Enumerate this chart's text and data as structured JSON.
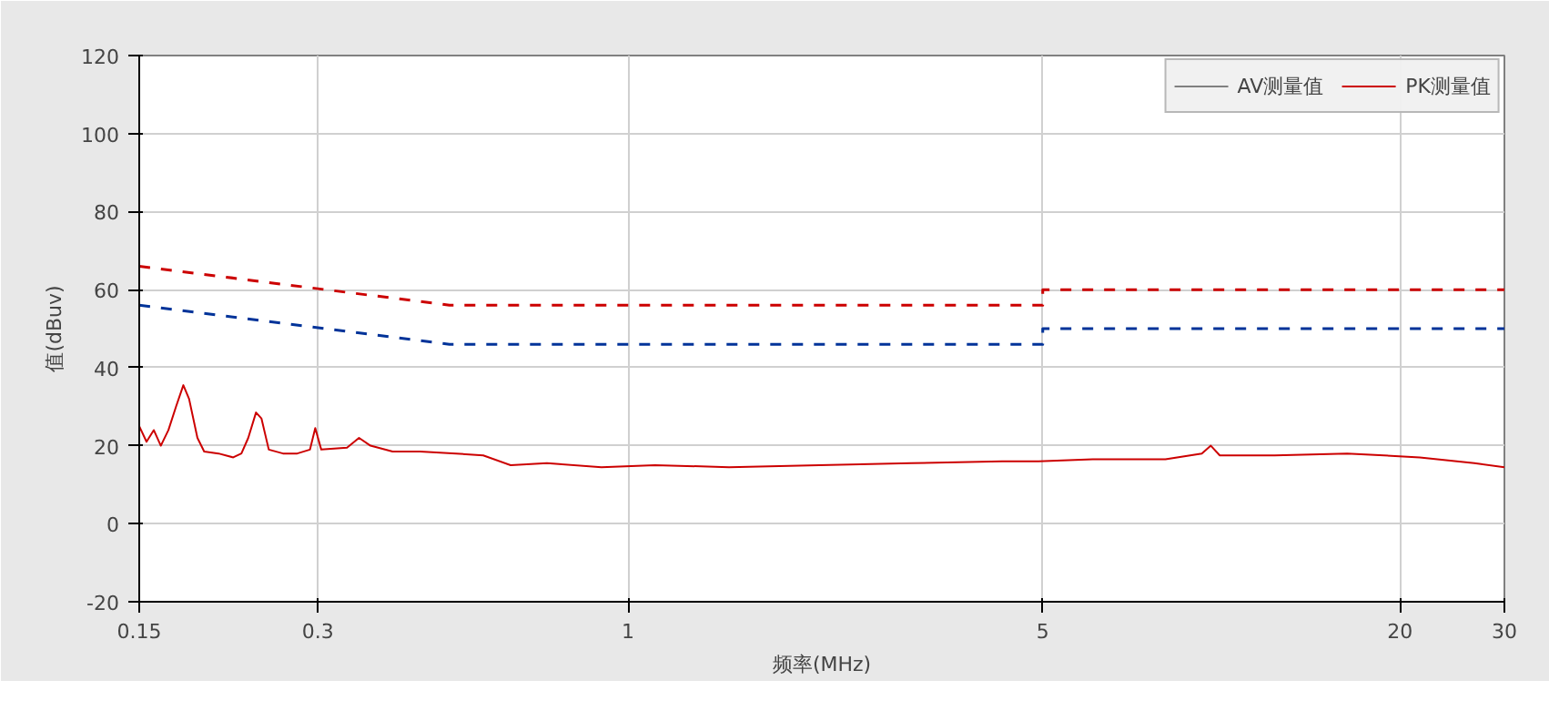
{
  "chart_data": {
    "type": "line",
    "xlabel": "频率(MHz)",
    "ylabel": "值(dBuv)",
    "log": "x",
    "xlim": [
      0.15,
      30
    ],
    "ylim": [
      -20,
      120
    ],
    "xticks": [
      0.15,
      0.3,
      1,
      5,
      20,
      30
    ],
    "yticks": [
      -20,
      0,
      20,
      40,
      60,
      80,
      100,
      120
    ],
    "grid": true,
    "legend": "top right",
    "marker": "none",
    "series": [
      {
        "name": "AV测量值",
        "color": "#808080"
      },
      {
        "name": "PK测量值",
        "color": "#cc0000",
        "x": [
          0.15,
          0.1543,
          0.1587,
          0.1631,
          0.168,
          0.173,
          0.178,
          0.182,
          0.188,
          0.193,
          0.204,
          0.216,
          0.223,
          0.229,
          0.236,
          0.241,
          0.248,
          0.262,
          0.277,
          0.291,
          0.297,
          0.304,
          0.336,
          0.352,
          0.368,
          0.401,
          0.446,
          0.513,
          0.57,
          0.634,
          0.73,
          0.902,
          1.11,
          1.48,
          2.1,
          3.0,
          4.27,
          4.92,
          6.07,
          8.05,
          9.27,
          9.6,
          9.94,
          12.3,
          16.3,
          21.6,
          26.7,
          30
        ],
        "values": [
          25,
          21,
          24,
          20,
          24,
          30,
          35.5,
          32,
          22,
          18.5,
          18,
          17,
          18,
          22,
          28.5,
          27,
          19,
          18,
          18,
          19,
          24.5,
          19,
          19.5,
          22,
          20,
          18.5,
          18.5,
          18,
          17.5,
          15,
          15.5,
          14.5,
          15,
          14.5,
          15,
          15.5,
          16,
          16,
          16.5,
          16.5,
          18,
          20,
          17.5,
          17.5,
          18,
          17,
          15.5,
          14.5
        ]
      },
      {
        "color": "#cc0000",
        "line_style": "dashed",
        "x": [
          0.15,
          0.5,
          5,
          5,
          30
        ],
        "values": [
          66,
          56,
          56,
          60,
          60
        ]
      },
      {
        "color": "#003399",
        "line_style": "dashed",
        "x": [
          0.15,
          0.5,
          5,
          5,
          30
        ],
        "values": [
          56,
          46,
          46,
          50,
          50
        ]
      }
    ]
  }
}
